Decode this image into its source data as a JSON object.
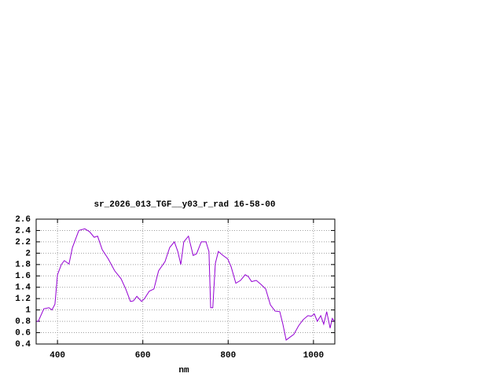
{
  "chart_data": {
    "type": "line",
    "title": "sr_2026_013_TGF__y03_r_rad 16-58-00",
    "x_label": "nm",
    "x": [
      350,
      355,
      368,
      380,
      387,
      394,
      400,
      409,
      416,
      427,
      435,
      450,
      464,
      475,
      486,
      494,
      505,
      519,
      534,
      549,
      560,
      571,
      578,
      586,
      597,
      604,
      615,
      626,
      637,
      652,
      663,
      674,
      682,
      689,
      696,
      707,
      718,
      726,
      737,
      748,
      755,
      759,
      764,
      770,
      777,
      788,
      799,
      807,
      818,
      829,
      840,
      847,
      855,
      866,
      877,
      888,
      899,
      910,
      921,
      928,
      936,
      943,
      954,
      965,
      976,
      987,
      995,
      1002,
      1009,
      1017,
      1024,
      1031,
      1039,
      1044,
      1050
    ],
    "values": [
      0.8,
      0.8,
      1.02,
      1.04,
      1.0,
      1.1,
      1.62,
      1.8,
      1.87,
      1.81,
      2.1,
      2.4,
      2.43,
      2.38,
      2.28,
      2.3,
      2.06,
      1.9,
      1.69,
      1.55,
      1.37,
      1.15,
      1.16,
      1.24,
      1.15,
      1.2,
      1.33,
      1.37,
      1.69,
      1.85,
      2.1,
      2.2,
      2.03,
      1.8,
      2.2,
      2.3,
      1.96,
      1.99,
      2.2,
      2.2,
      2.03,
      1.04,
      1.04,
      1.82,
      2.03,
      1.96,
      1.9,
      1.76,
      1.47,
      1.52,
      1.62,
      1.59,
      1.5,
      1.52,
      1.45,
      1.37,
      1.09,
      0.98,
      0.97,
      0.76,
      0.47,
      0.51,
      0.57,
      0.72,
      0.83,
      0.9,
      0.89,
      0.93,
      0.8,
      0.9,
      0.75,
      0.97,
      0.68,
      0.85,
      0.79
    ],
    "color": "#9400d3",
    "xlim": [
      350,
      1050
    ],
    "xticks": [
      400,
      600,
      800,
      1000
    ],
    "ylim": [
      0.4,
      2.6
    ],
    "yticks": [
      0.4,
      0.6,
      0.8,
      1,
      1.2,
      1.4,
      1.6,
      1.8,
      2,
      2.2,
      2.4,
      2.6
    ],
    "grid": true
  }
}
